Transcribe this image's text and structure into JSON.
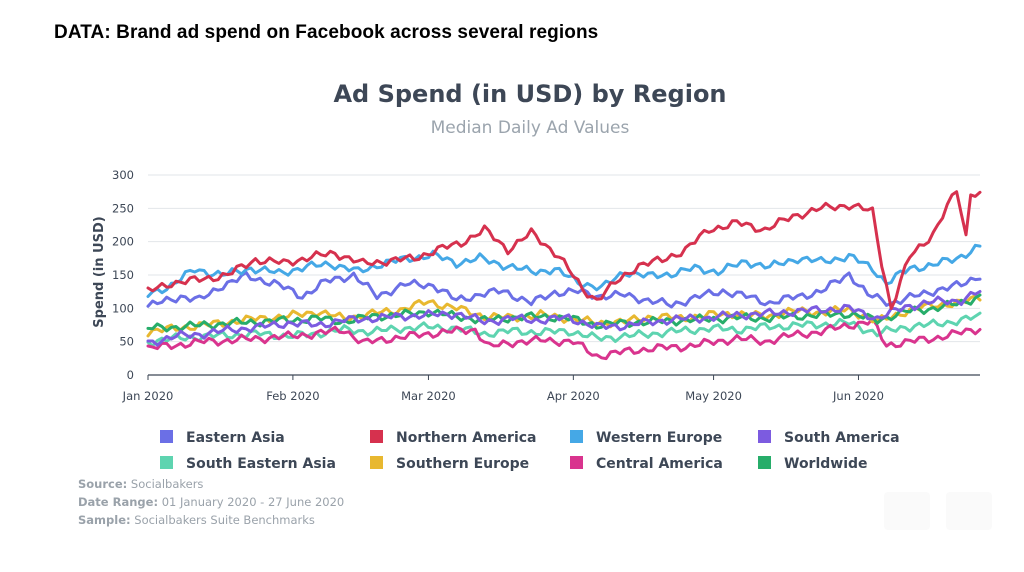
{
  "headline": "DATA: Brand ad spend on Facebook across several regions",
  "footer": {
    "source_label": "Source:",
    "source_value": "Socialbakers",
    "range_label": "Date Range:",
    "range_value": "01 January 2020 - 27 June 2020",
    "sample_label": "Sample:",
    "sample_value": "Socialbakers Suite Benchmarks"
  },
  "chart_data": {
    "type": "line",
    "title": "Ad Spend (in USD) by Region",
    "subtitle": "Median Daily Ad Values",
    "ylabel": "Spend (in USD)",
    "xlabel": "",
    "ylim": [
      0,
      300
    ],
    "yticks": [
      0,
      50,
      100,
      150,
      200,
      250,
      300
    ],
    "xlim": [
      "2020-01-01",
      "2020-06-27"
    ],
    "xticks": [
      {
        "date": "2020-01-01",
        "label": "Jan 2020"
      },
      {
        "date": "2020-02-01",
        "label": "Feb 2020"
      },
      {
        "date": "2020-03-01",
        "label": "Mar 2020"
      },
      {
        "date": "2020-04-01",
        "label": "Apr 2020"
      },
      {
        "date": "2020-05-01",
        "label": "May 2020"
      },
      {
        "date": "2020-06-01",
        "label": "Jun 2020"
      }
    ],
    "grid": "horizontal",
    "legend_position": "bottom",
    "series": [
      {
        "name": "Eastern Asia",
        "color": "#6b6fe6",
        "points": [
          [
            "2020-01-01",
            103
          ],
          [
            "2020-01-08",
            118
          ],
          [
            "2020-01-12",
            112
          ],
          [
            "2020-01-17",
            135
          ],
          [
            "2020-01-22",
            148
          ],
          [
            "2020-01-28",
            138
          ],
          [
            "2020-02-03",
            118
          ],
          [
            "2020-02-08",
            140
          ],
          [
            "2020-02-14",
            150
          ],
          [
            "2020-02-19",
            118
          ],
          [
            "2020-02-25",
            136
          ],
          [
            "2020-03-02",
            135
          ],
          [
            "2020-03-07",
            112
          ],
          [
            "2020-03-12",
            121
          ],
          [
            "2020-03-17",
            126
          ],
          [
            "2020-03-23",
            108
          ],
          [
            "2020-03-28",
            124
          ],
          [
            "2020-04-02",
            125
          ],
          [
            "2020-04-07",
            118
          ],
          [
            "2020-04-12",
            120
          ],
          [
            "2020-04-17",
            112
          ],
          [
            "2020-04-22",
            105
          ],
          [
            "2020-04-28",
            118
          ],
          [
            "2020-05-03",
            126
          ],
          [
            "2020-05-08",
            118
          ],
          [
            "2020-05-13",
            108
          ],
          [
            "2020-05-19",
            118
          ],
          [
            "2020-05-24",
            125
          ],
          [
            "2020-05-30",
            152
          ],
          [
            "2020-06-03",
            120
          ],
          [
            "2020-06-08",
            108
          ],
          [
            "2020-06-13",
            118
          ],
          [
            "2020-06-18",
            128
          ],
          [
            "2020-06-23",
            135
          ],
          [
            "2020-06-27",
            150
          ]
        ]
      },
      {
        "name": "Northern America",
        "color": "#d6314e",
        "points": [
          [
            "2020-01-01",
            125
          ],
          [
            "2020-01-06",
            138
          ],
          [
            "2020-01-12",
            143
          ],
          [
            "2020-01-18",
            150
          ],
          [
            "2020-01-24",
            173
          ],
          [
            "2020-01-30",
            168
          ],
          [
            "2020-02-05",
            177
          ],
          [
            "2020-02-10",
            183
          ],
          [
            "2020-02-16",
            167
          ],
          [
            "2020-02-21",
            171
          ],
          [
            "2020-02-27",
            175
          ],
          [
            "2020-03-03",
            188
          ],
          [
            "2020-03-08",
            198
          ],
          [
            "2020-03-13",
            218
          ],
          [
            "2020-03-18",
            188
          ],
          [
            "2020-03-23",
            213
          ],
          [
            "2020-03-29",
            178
          ],
          [
            "2020-04-03",
            128
          ],
          [
            "2020-04-06",
            113
          ],
          [
            "2020-04-10",
            138
          ],
          [
            "2020-04-15",
            165
          ],
          [
            "2020-04-20",
            172
          ],
          [
            "2020-04-25",
            188
          ],
          [
            "2020-04-30",
            218
          ],
          [
            "2020-05-06",
            228
          ],
          [
            "2020-05-12",
            218
          ],
          [
            "2020-05-18",
            238
          ],
          [
            "2020-05-24",
            250
          ],
          [
            "2020-05-30",
            255
          ],
          [
            "2020-06-04",
            245
          ],
          [
            "2020-06-06",
            168
          ],
          [
            "2020-06-08",
            100
          ],
          [
            "2020-06-12",
            178
          ],
          [
            "2020-06-17",
            212
          ],
          [
            "2020-06-22",
            278
          ],
          [
            "2020-06-24",
            208
          ],
          [
            "2020-06-25",
            275
          ],
          [
            "2020-06-27",
            270
          ]
        ]
      },
      {
        "name": "Western Europe",
        "color": "#45a8e6",
        "points": [
          [
            "2020-01-01",
            120
          ],
          [
            "2020-01-06",
            135
          ],
          [
            "2020-01-11",
            158
          ],
          [
            "2020-01-17",
            150
          ],
          [
            "2020-01-23",
            160
          ],
          [
            "2020-01-29",
            153
          ],
          [
            "2020-02-04",
            162
          ],
          [
            "2020-02-09",
            167
          ],
          [
            "2020-02-15",
            155
          ],
          [
            "2020-02-20",
            167
          ],
          [
            "2020-02-26",
            175
          ],
          [
            "2020-03-02",
            180
          ],
          [
            "2020-03-07",
            168
          ],
          [
            "2020-03-12",
            175
          ],
          [
            "2020-03-17",
            165
          ],
          [
            "2020-03-23",
            155
          ],
          [
            "2020-03-28",
            158
          ],
          [
            "2020-04-02",
            140
          ],
          [
            "2020-04-07",
            130
          ],
          [
            "2020-04-12",
            155
          ],
          [
            "2020-04-17",
            148
          ],
          [
            "2020-04-22",
            152
          ],
          [
            "2020-04-27",
            160
          ],
          [
            "2020-05-02",
            155
          ],
          [
            "2020-05-08",
            170
          ],
          [
            "2020-05-13",
            162
          ],
          [
            "2020-05-19",
            175
          ],
          [
            "2020-05-24",
            170
          ],
          [
            "2020-05-30",
            178
          ],
          [
            "2020-06-04",
            160
          ],
          [
            "2020-06-07",
            138
          ],
          [
            "2020-06-12",
            160
          ],
          [
            "2020-06-17",
            165
          ],
          [
            "2020-06-22",
            175
          ],
          [
            "2020-06-27",
            193
          ]
        ]
      },
      {
        "name": "South America",
        "color": "#7c5be0",
        "points": [
          [
            "2020-01-01",
            48
          ],
          [
            "2020-01-07",
            58
          ],
          [
            "2020-01-13",
            62
          ],
          [
            "2020-01-19",
            68
          ],
          [
            "2020-01-25",
            72
          ],
          [
            "2020-01-31",
            78
          ],
          [
            "2020-02-06",
            75
          ],
          [
            "2020-02-12",
            82
          ],
          [
            "2020-02-18",
            85
          ],
          [
            "2020-02-24",
            88
          ],
          [
            "2020-03-01",
            90
          ],
          [
            "2020-03-07",
            92
          ],
          [
            "2020-03-13",
            80
          ],
          [
            "2020-03-19",
            85
          ],
          [
            "2020-03-25",
            82
          ],
          [
            "2020-03-31",
            86
          ],
          [
            "2020-04-06",
            72
          ],
          [
            "2020-04-12",
            74
          ],
          [
            "2020-04-18",
            80
          ],
          [
            "2020-04-24",
            84
          ],
          [
            "2020-04-30",
            86
          ],
          [
            "2020-05-06",
            90
          ],
          [
            "2020-05-12",
            92
          ],
          [
            "2020-05-18",
            95
          ],
          [
            "2020-05-24",
            98
          ],
          [
            "2020-05-30",
            100
          ],
          [
            "2020-06-05",
            85
          ],
          [
            "2020-06-11",
            102
          ],
          [
            "2020-06-17",
            110
          ],
          [
            "2020-06-23",
            112
          ],
          [
            "2020-06-27",
            125
          ]
        ]
      },
      {
        "name": "South Eastern Asia",
        "color": "#5ed4b0",
        "points": [
          [
            "2020-01-01",
            50
          ],
          [
            "2020-01-07",
            55
          ],
          [
            "2020-01-13",
            58
          ],
          [
            "2020-01-19",
            60
          ],
          [
            "2020-01-25",
            62
          ],
          [
            "2020-01-31",
            58
          ],
          [
            "2020-02-06",
            62
          ],
          [
            "2020-02-12",
            68
          ],
          [
            "2020-02-18",
            65
          ],
          [
            "2020-02-24",
            70
          ],
          [
            "2020-03-01",
            72
          ],
          [
            "2020-03-07",
            70
          ],
          [
            "2020-03-13",
            62
          ],
          [
            "2020-03-19",
            66
          ],
          [
            "2020-03-25",
            64
          ],
          [
            "2020-03-31",
            66
          ],
          [
            "2020-04-06",
            55
          ],
          [
            "2020-04-12",
            58
          ],
          [
            "2020-04-18",
            62
          ],
          [
            "2020-04-24",
            66
          ],
          [
            "2020-04-30",
            70
          ],
          [
            "2020-05-06",
            68
          ],
          [
            "2020-05-12",
            72
          ],
          [
            "2020-05-18",
            74
          ],
          [
            "2020-05-24",
            76
          ],
          [
            "2020-05-30",
            78
          ],
          [
            "2020-06-05",
            62
          ],
          [
            "2020-06-11",
            72
          ],
          [
            "2020-06-17",
            76
          ],
          [
            "2020-06-23",
            82
          ],
          [
            "2020-06-27",
            88
          ]
        ]
      },
      {
        "name": "Southern Europe",
        "color": "#e8b830",
        "points": [
          [
            "2020-01-01",
            65
          ],
          [
            "2020-01-07",
            70
          ],
          [
            "2020-01-13",
            75
          ],
          [
            "2020-01-19",
            80
          ],
          [
            "2020-01-25",
            85
          ],
          [
            "2020-01-31",
            88
          ],
          [
            "2020-02-06",
            95
          ],
          [
            "2020-02-12",
            85
          ],
          [
            "2020-02-18",
            92
          ],
          [
            "2020-02-24",
            98
          ],
          [
            "2020-03-01",
            110
          ],
          [
            "2020-03-07",
            100
          ],
          [
            "2020-03-13",
            88
          ],
          [
            "2020-03-19",
            86
          ],
          [
            "2020-03-25",
            90
          ],
          [
            "2020-03-31",
            85
          ],
          [
            "2020-04-06",
            78
          ],
          [
            "2020-04-12",
            80
          ],
          [
            "2020-04-18",
            88
          ],
          [
            "2020-04-24",
            85
          ],
          [
            "2020-04-30",
            90
          ],
          [
            "2020-05-06",
            92
          ],
          [
            "2020-05-12",
            88
          ],
          [
            "2020-05-18",
            96
          ],
          [
            "2020-05-24",
            94
          ],
          [
            "2020-05-30",
            98
          ],
          [
            "2020-06-05",
            80
          ],
          [
            "2020-06-11",
            95
          ],
          [
            "2020-06-17",
            105
          ],
          [
            "2020-06-23",
            108
          ],
          [
            "2020-06-27",
            118
          ]
        ]
      },
      {
        "name": "Central America",
        "color": "#d9348e",
        "points": [
          [
            "2020-01-01",
            40
          ],
          [
            "2020-01-07",
            45
          ],
          [
            "2020-01-13",
            50
          ],
          [
            "2020-01-19",
            52
          ],
          [
            "2020-01-25",
            55
          ],
          [
            "2020-01-31",
            58
          ],
          [
            "2020-02-06",
            62
          ],
          [
            "2020-02-12",
            68
          ],
          [
            "2020-02-16",
            48
          ],
          [
            "2020-02-22",
            55
          ],
          [
            "2020-02-28",
            60
          ],
          [
            "2020-03-05",
            65
          ],
          [
            "2020-03-11",
            68
          ],
          [
            "2020-03-14",
            42
          ],
          [
            "2020-03-20",
            50
          ],
          [
            "2020-03-26",
            52
          ],
          [
            "2020-04-01",
            50
          ],
          [
            "2020-04-06",
            28
          ],
          [
            "2020-04-12",
            35
          ],
          [
            "2020-04-18",
            40
          ],
          [
            "2020-04-24",
            42
          ],
          [
            "2020-04-30",
            48
          ],
          [
            "2020-05-06",
            55
          ],
          [
            "2020-05-12",
            50
          ],
          [
            "2020-05-18",
            60
          ],
          [
            "2020-05-24",
            65
          ],
          [
            "2020-05-30",
            75
          ],
          [
            "2020-06-04",
            80
          ],
          [
            "2020-06-07",
            45
          ],
          [
            "2020-06-12",
            50
          ],
          [
            "2020-06-17",
            55
          ],
          [
            "2020-06-22",
            62
          ],
          [
            "2020-06-27",
            70
          ]
        ]
      },
      {
        "name": "Worldwide",
        "color": "#27ad6a",
        "points": [
          [
            "2020-01-01",
            70
          ],
          [
            "2020-01-07",
            72
          ],
          [
            "2020-01-13",
            75
          ],
          [
            "2020-01-19",
            78
          ],
          [
            "2020-01-25",
            80
          ],
          [
            "2020-01-31",
            82
          ],
          [
            "2020-02-06",
            85
          ],
          [
            "2020-02-12",
            80
          ],
          [
            "2020-02-18",
            88
          ],
          [
            "2020-02-24",
            90
          ],
          [
            "2020-03-01",
            95
          ],
          [
            "2020-03-07",
            88
          ],
          [
            "2020-03-13",
            82
          ],
          [
            "2020-03-19",
            86
          ],
          [
            "2020-03-25",
            88
          ],
          [
            "2020-03-31",
            85
          ],
          [
            "2020-04-06",
            75
          ],
          [
            "2020-04-12",
            78
          ],
          [
            "2020-04-18",
            80
          ],
          [
            "2020-04-24",
            82
          ],
          [
            "2020-04-30",
            84
          ],
          [
            "2020-05-06",
            86
          ],
          [
            "2020-05-12",
            85
          ],
          [
            "2020-05-18",
            88
          ],
          [
            "2020-05-24",
            90
          ],
          [
            "2020-05-30",
            92
          ],
          [
            "2020-06-05",
            82
          ],
          [
            "2020-06-11",
            95
          ],
          [
            "2020-06-17",
            100
          ],
          [
            "2020-06-23",
            108
          ],
          [
            "2020-06-27",
            118
          ]
        ]
      }
    ]
  }
}
